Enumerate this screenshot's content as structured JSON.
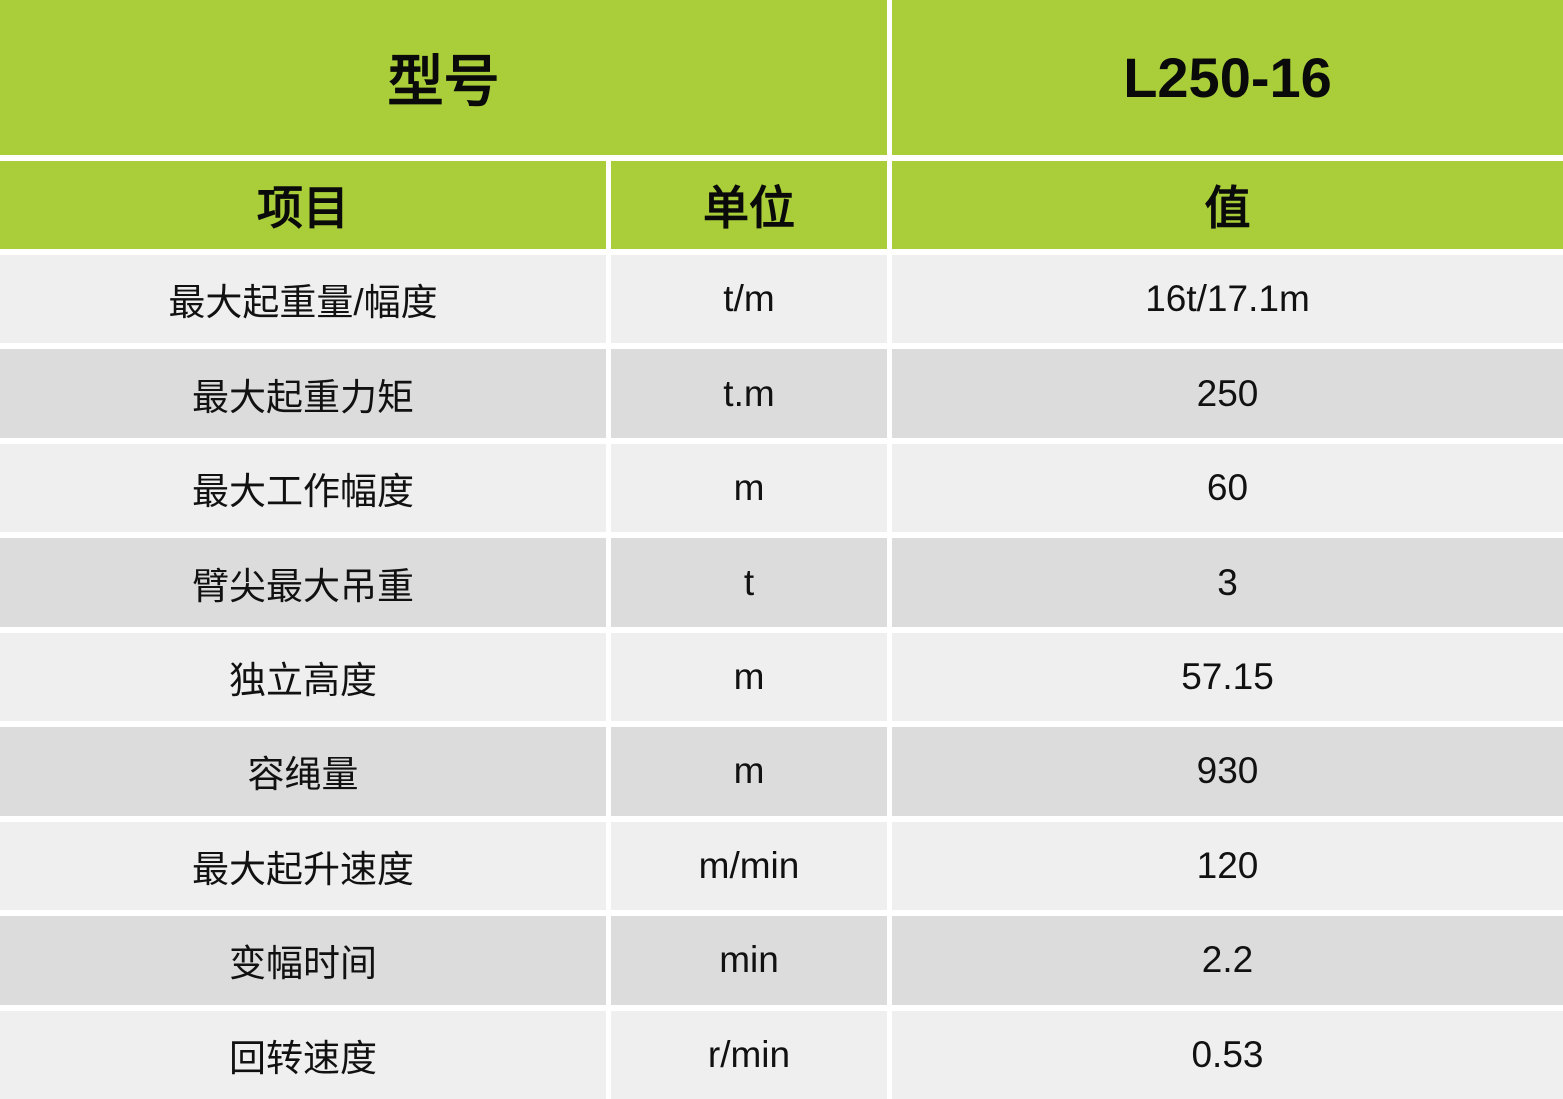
{
  "header": {
    "model_label": "型号",
    "model_value": "L250-16"
  },
  "columns": {
    "item": "项目",
    "unit": "单位",
    "value": "值"
  },
  "colors": {
    "header_green": "#a9ce39",
    "row_light": "#efefef",
    "row_dark": "#dcdcdc"
  },
  "rows": [
    {
      "item": "最大起重量/幅度",
      "unit": "t/m",
      "value": "16t/17.1m"
    },
    {
      "item": "最大起重力矩",
      "unit": "t.m",
      "value": "250"
    },
    {
      "item": "最大工作幅度",
      "unit": "m",
      "value": "60"
    },
    {
      "item": "臂尖最大吊重",
      "unit": "t",
      "value": "3"
    },
    {
      "item": "独立高度",
      "unit": "m",
      "value": "57.15"
    },
    {
      "item": "容绳量",
      "unit": "m",
      "value": "930"
    },
    {
      "item": "最大起升速度",
      "unit": "m/min",
      "value": "120"
    },
    {
      "item": "变幅时间",
      "unit": "min",
      "value": "2.2"
    },
    {
      "item": "回转速度",
      "unit": "r/min",
      "value": "0.53"
    }
  ]
}
